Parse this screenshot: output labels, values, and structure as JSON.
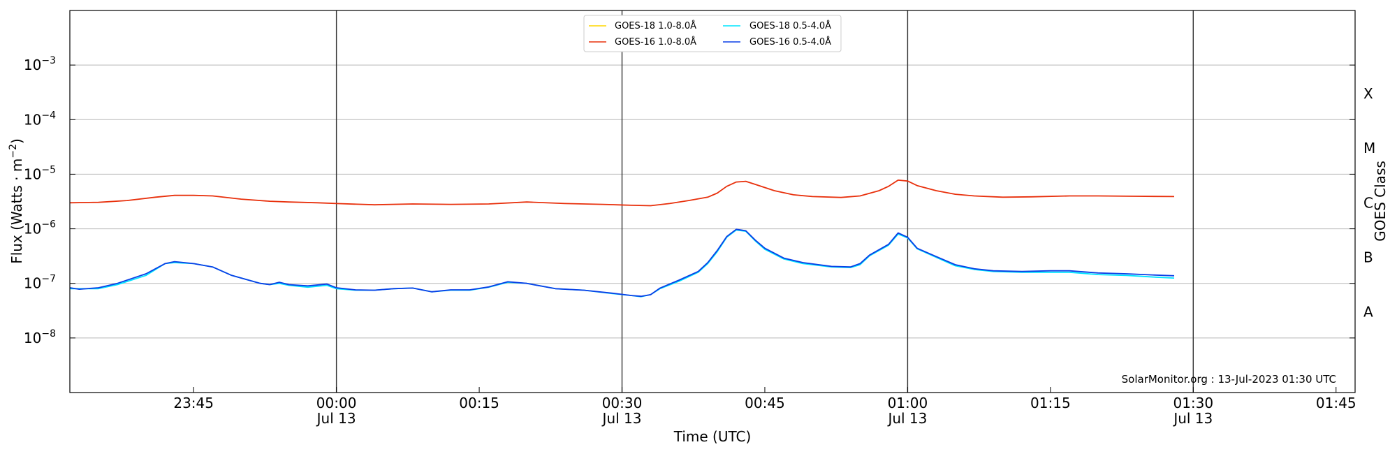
{
  "chart_data": {
    "type": "line",
    "xlabel": "Time (UTC)",
    "ylabel": "Flux (Watts · m",
    "ylabel_exp": "−2",
    "ylabel_close": ")",
    "right_label": "GOES Class",
    "credit": "SolarMonitor.org : 13-Jul-2023 01:30 UTC",
    "y_scale": "log",
    "ylim": [
      1e-09,
      0.01
    ],
    "xlim": [
      "2023-07-12T23:32",
      "2023-07-13T01:47"
    ],
    "grid": "horizontal",
    "legend_position": "top-center",
    "y_ticks": [
      {
        "value": 1e-08,
        "base": "10",
        "exp": "−8"
      },
      {
        "value": 1e-07,
        "base": "10",
        "exp": "−7"
      },
      {
        "value": 1e-06,
        "base": "10",
        "exp": "−6"
      },
      {
        "value": 1e-05,
        "base": "10",
        "exp": "−5"
      },
      {
        "value": 0.0001,
        "base": "10",
        "exp": "−4"
      },
      {
        "value": 0.001,
        "base": "10",
        "exp": "−3"
      }
    ],
    "x_ticks": [
      {
        "time": "2023-07-12T23:45",
        "label": "23:45",
        "sublabel": ""
      },
      {
        "time": "2023-07-13T00:00",
        "label": "00:00",
        "sublabel": "Jul 13"
      },
      {
        "time": "2023-07-13T00:15",
        "label": "00:15",
        "sublabel": ""
      },
      {
        "time": "2023-07-13T00:30",
        "label": "00:30",
        "sublabel": "Jul 13"
      },
      {
        "time": "2023-07-13T00:45",
        "label": "00:45",
        "sublabel": ""
      },
      {
        "time": "2023-07-13T01:00",
        "label": "01:00",
        "sublabel": "Jul 13"
      },
      {
        "time": "2023-07-13T01:15",
        "label": "01:15",
        "sublabel": ""
      },
      {
        "time": "2023-07-13T01:30",
        "label": "01:30",
        "sublabel": "Jul 13"
      },
      {
        "time": "2023-07-13T01:45",
        "label": "01:45",
        "sublabel": ""
      }
    ],
    "vertical_lines": [
      "2023-07-13T00:00",
      "2023-07-13T00:30",
      "2023-07-13T01:00",
      "2023-07-13T01:30"
    ],
    "goes_classes": [
      {
        "label": "A",
        "flux": 3e-08
      },
      {
        "label": "B",
        "flux": 3e-07
      },
      {
        "label": "C",
        "flux": 3e-06
      },
      {
        "label": "M",
        "flux": 3e-05
      },
      {
        "label": "X",
        "flux": 0.0003
      }
    ],
    "series": [
      {
        "name": "GOES-18 1.0-8.0Å",
        "color": "#ffd700",
        "points": []
      },
      {
        "name": "GOES-18 0.5-4.0Å",
        "color": "#00e5ff",
        "points": [
          [
            "2023-07-12T23:32",
            8e-08
          ],
          [
            "2023-07-12T23:35",
            8e-08
          ],
          [
            "2023-07-12T23:37",
            9.5e-08
          ],
          [
            "2023-07-12T23:40",
            1.4e-07
          ],
          [
            "2023-07-12T23:42",
            2.3e-07
          ],
          [
            "2023-07-12T23:43",
            2.4e-07
          ],
          [
            "2023-07-12T23:45",
            2.3e-07
          ],
          [
            "2023-07-12T23:47",
            2e-07
          ],
          [
            "2023-07-12T23:49",
            1.4e-07
          ],
          [
            "2023-07-12T23:52",
            1e-07
          ],
          [
            "2023-07-12T23:53",
            9.5e-08
          ],
          [
            "2023-07-12T23:54",
            1e-07
          ],
          [
            "2023-07-12T23:55",
            9.2e-08
          ],
          [
            "2023-07-12T23:57",
            8.5e-08
          ],
          [
            "2023-07-12T23:59",
            9.2e-08
          ],
          [
            "2023-07-13T00:00",
            8e-08
          ],
          [
            "2023-07-13T00:02",
            7.5e-08
          ],
          [
            "2023-07-13T00:04",
            7.5e-08
          ],
          [
            "2023-07-13T00:06",
            8e-08
          ],
          [
            "2023-07-13T00:08",
            8.2e-08
          ],
          [
            "2023-07-13T00:10",
            7e-08
          ],
          [
            "2023-07-13T00:12",
            7.5e-08
          ],
          [
            "2023-07-13T00:14",
            7.5e-08
          ],
          [
            "2023-07-13T00:16",
            8.5e-08
          ],
          [
            "2023-07-13T00:18",
            1.05e-07
          ],
          [
            "2023-07-13T00:20",
            1e-07
          ],
          [
            "2023-07-13T00:23",
            8e-08
          ],
          [
            "2023-07-13T00:26",
            7.5e-08
          ],
          [
            "2023-07-13T00:29",
            6.5e-08
          ],
          [
            "2023-07-13T00:31",
            6e-08
          ],
          [
            "2023-07-13T00:32",
            5.7e-08
          ],
          [
            "2023-07-13T00:33",
            6.2e-08
          ],
          [
            "2023-07-13T00:34",
            8e-08
          ],
          [
            "2023-07-13T00:36",
            1.1e-07
          ],
          [
            "2023-07-13T00:38",
            1.6e-07
          ],
          [
            "2023-07-13T00:39",
            2.3e-07
          ],
          [
            "2023-07-13T00:40",
            3.8e-07
          ],
          [
            "2023-07-13T00:41",
            7e-07
          ],
          [
            "2023-07-13T00:42",
            9.5e-07
          ],
          [
            "2023-07-13T00:43",
            9e-07
          ],
          [
            "2023-07-13T00:44",
            6e-07
          ],
          [
            "2023-07-13T00:45",
            4.2e-07
          ],
          [
            "2023-07-13T00:47",
            2.8e-07
          ],
          [
            "2023-07-13T00:49",
            2.3e-07
          ],
          [
            "2023-07-13T00:52",
            2e-07
          ],
          [
            "2023-07-13T00:54",
            1.95e-07
          ],
          [
            "2023-07-13T00:55",
            2.2e-07
          ],
          [
            "2023-07-13T00:56",
            3.2e-07
          ],
          [
            "2023-07-13T00:58",
            5e-07
          ],
          [
            "2023-07-13T00:59",
            8e-07
          ],
          [
            "2023-07-13T01:00",
            6.8e-07
          ],
          [
            "2023-07-13T01:01",
            4.3e-07
          ],
          [
            "2023-07-13T01:03",
            3e-07
          ],
          [
            "2023-07-13T01:05",
            2.1e-07
          ],
          [
            "2023-07-13T01:07",
            1.8e-07
          ],
          [
            "2023-07-13T01:09",
            1.65e-07
          ],
          [
            "2023-07-13T01:12",
            1.6e-07
          ],
          [
            "2023-07-13T01:15",
            1.6e-07
          ],
          [
            "2023-07-13T01:17",
            1.6e-07
          ],
          [
            "2023-07-13T01:20",
            1.45e-07
          ],
          [
            "2023-07-13T01:23",
            1.4e-07
          ],
          [
            "2023-07-13T01:26",
            1.3e-07
          ],
          [
            "2023-07-13T01:28",
            1.25e-07
          ]
        ]
      },
      {
        "name": "GOES-16 1.0-8.0Å",
        "color": "#e8300c",
        "points": [
          [
            "2023-07-12T23:32",
            3e-06
          ],
          [
            "2023-07-12T23:35",
            3.05e-06
          ],
          [
            "2023-07-12T23:38",
            3.3e-06
          ],
          [
            "2023-07-12T23:41",
            3.8e-06
          ],
          [
            "2023-07-12T23:43",
            4.1e-06
          ],
          [
            "2023-07-12T23:45",
            4.1e-06
          ],
          [
            "2023-07-12T23:47",
            4e-06
          ],
          [
            "2023-07-12T23:50",
            3.5e-06
          ],
          [
            "2023-07-12T23:53",
            3.2e-06
          ],
          [
            "2023-07-12T23:55",
            3.1e-06
          ],
          [
            "2023-07-12T23:58",
            3e-06
          ],
          [
            "2023-07-13T00:00",
            2.9e-06
          ],
          [
            "2023-07-13T00:04",
            2.75e-06
          ],
          [
            "2023-07-13T00:08",
            2.85e-06
          ],
          [
            "2023-07-13T00:12",
            2.8e-06
          ],
          [
            "2023-07-13T00:16",
            2.85e-06
          ],
          [
            "2023-07-13T00:20",
            3.1e-06
          ],
          [
            "2023-07-13T00:24",
            2.9e-06
          ],
          [
            "2023-07-13T00:28",
            2.8e-06
          ],
          [
            "2023-07-13T00:31",
            2.7e-06
          ],
          [
            "2023-07-13T00:33",
            2.65e-06
          ],
          [
            "2023-07-13T00:35",
            2.9e-06
          ],
          [
            "2023-07-13T00:37",
            3.3e-06
          ],
          [
            "2023-07-13T00:39",
            3.8e-06
          ],
          [
            "2023-07-13T00:40",
            4.5e-06
          ],
          [
            "2023-07-13T00:41",
            6e-06
          ],
          [
            "2023-07-13T00:42",
            7.2e-06
          ],
          [
            "2023-07-13T00:43",
            7.4e-06
          ],
          [
            "2023-07-13T00:44",
            6.5e-06
          ],
          [
            "2023-07-13T00:46",
            5e-06
          ],
          [
            "2023-07-13T00:48",
            4.2e-06
          ],
          [
            "2023-07-13T00:50",
            3.9e-06
          ],
          [
            "2023-07-13T00:53",
            3.75e-06
          ],
          [
            "2023-07-13T00:55",
            4e-06
          ],
          [
            "2023-07-13T00:57",
            5e-06
          ],
          [
            "2023-07-13T00:58",
            6e-06
          ],
          [
            "2023-07-13T00:59",
            7.8e-06
          ],
          [
            "2023-07-13T01:00",
            7.5e-06
          ],
          [
            "2023-07-13T01:01",
            6.2e-06
          ],
          [
            "2023-07-13T01:03",
            5e-06
          ],
          [
            "2023-07-13T01:05",
            4.3e-06
          ],
          [
            "2023-07-13T01:07",
            4e-06
          ],
          [
            "2023-07-13T01:10",
            3.8e-06
          ],
          [
            "2023-07-13T01:13",
            3.85e-06
          ],
          [
            "2023-07-13T01:17",
            4e-06
          ],
          [
            "2023-07-13T01:20",
            4e-06
          ],
          [
            "2023-07-13T01:24",
            3.95e-06
          ],
          [
            "2023-07-13T01:28",
            3.9e-06
          ]
        ]
      },
      {
        "name": "GOES-16 0.5-4.0Å",
        "color": "#0a3ee6",
        "points": [
          [
            "2023-07-12T23:32",
            8.3e-08
          ],
          [
            "2023-07-12T23:33",
            7.8e-08
          ],
          [
            "2023-07-12T23:35",
            8.3e-08
          ],
          [
            "2023-07-12T23:37",
            1e-07
          ],
          [
            "2023-07-12T23:40",
            1.5e-07
          ],
          [
            "2023-07-12T23:42",
            2.3e-07
          ],
          [
            "2023-07-12T23:43",
            2.5e-07
          ],
          [
            "2023-07-12T23:45",
            2.3e-07
          ],
          [
            "2023-07-12T23:47",
            2e-07
          ],
          [
            "2023-07-12T23:49",
            1.4e-07
          ],
          [
            "2023-07-12T23:52",
            1e-07
          ],
          [
            "2023-07-12T23:53",
            9.5e-08
          ],
          [
            "2023-07-12T23:54",
            1.05e-07
          ],
          [
            "2023-07-12T23:55",
            9.5e-08
          ],
          [
            "2023-07-12T23:57",
            9e-08
          ],
          [
            "2023-07-12T23:59",
            9.7e-08
          ],
          [
            "2023-07-13T00:00",
            8.3e-08
          ],
          [
            "2023-07-13T00:02",
            7.6e-08
          ],
          [
            "2023-07-13T00:04",
            7.5e-08
          ],
          [
            "2023-07-13T00:06",
            8e-08
          ],
          [
            "2023-07-13T00:08",
            8.2e-08
          ],
          [
            "2023-07-13T00:10",
            7e-08
          ],
          [
            "2023-07-13T00:12",
            7.6e-08
          ],
          [
            "2023-07-13T00:14",
            7.6e-08
          ],
          [
            "2023-07-13T00:16",
            8.6e-08
          ],
          [
            "2023-07-13T00:18",
            1.07e-07
          ],
          [
            "2023-07-13T00:20",
            1e-07
          ],
          [
            "2023-07-13T00:23",
            8e-08
          ],
          [
            "2023-07-13T00:26",
            7.5e-08
          ],
          [
            "2023-07-13T00:29",
            6.6e-08
          ],
          [
            "2023-07-13T00:31",
            6e-08
          ],
          [
            "2023-07-13T00:32",
            5.8e-08
          ],
          [
            "2023-07-13T00:33",
            6.2e-08
          ],
          [
            "2023-07-13T00:34",
            8.2e-08
          ],
          [
            "2023-07-13T00:36",
            1.15e-07
          ],
          [
            "2023-07-13T00:38",
            1.65e-07
          ],
          [
            "2023-07-13T00:39",
            2.4e-07
          ],
          [
            "2023-07-13T00:40",
            4e-07
          ],
          [
            "2023-07-13T00:41",
            7.2e-07
          ],
          [
            "2023-07-13T00:42",
            9.8e-07
          ],
          [
            "2023-07-13T00:43",
            9.2e-07
          ],
          [
            "2023-07-13T00:44",
            6.2e-07
          ],
          [
            "2023-07-13T00:45",
            4.4e-07
          ],
          [
            "2023-07-13T00:47",
            2.9e-07
          ],
          [
            "2023-07-13T00:49",
            2.4e-07
          ],
          [
            "2023-07-13T00:52",
            2.05e-07
          ],
          [
            "2023-07-13T00:54",
            2e-07
          ],
          [
            "2023-07-13T00:55",
            2.3e-07
          ],
          [
            "2023-07-13T00:56",
            3.3e-07
          ],
          [
            "2023-07-13T00:58",
            5.2e-07
          ],
          [
            "2023-07-13T00:59",
            8.4e-07
          ],
          [
            "2023-07-13T01:00",
            7e-07
          ],
          [
            "2023-07-13T01:01",
            4.4e-07
          ],
          [
            "2023-07-13T01:03",
            3.1e-07
          ],
          [
            "2023-07-13T01:05",
            2.2e-07
          ],
          [
            "2023-07-13T01:07",
            1.85e-07
          ],
          [
            "2023-07-13T01:09",
            1.7e-07
          ],
          [
            "2023-07-13T01:12",
            1.65e-07
          ],
          [
            "2023-07-13T01:15",
            1.7e-07
          ],
          [
            "2023-07-13T01:17",
            1.7e-07
          ],
          [
            "2023-07-13T01:20",
            1.55e-07
          ],
          [
            "2023-07-13T01:23",
            1.5e-07
          ],
          [
            "2023-07-13T01:26",
            1.42e-07
          ],
          [
            "2023-07-13T01:28",
            1.38e-07
          ]
        ]
      }
    ]
  }
}
